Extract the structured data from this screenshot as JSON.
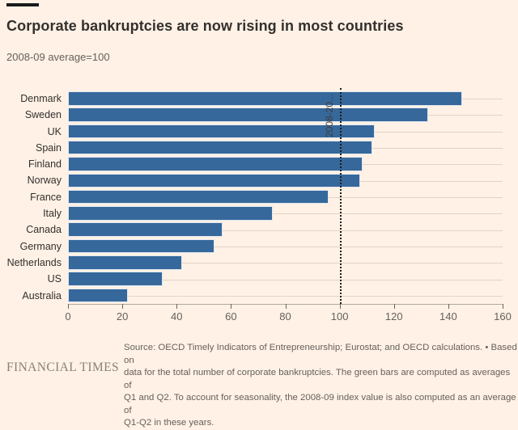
{
  "header": {
    "title": "Corporate bankruptcies are now rising in most countries",
    "subtitle": "2008-09 average=100"
  },
  "chart_data": {
    "type": "bar",
    "orientation": "horizontal",
    "categories": [
      "Denmark",
      "Sweden",
      "UK",
      "Spain",
      "Finland",
      "Norway",
      "France",
      "Italy",
      "Canada",
      "Germany",
      "Netherlands",
      "US",
      "Australia"
    ],
    "values": [
      145,
      132.5,
      113,
      112,
      108.5,
      107.5,
      96,
      75.5,
      57,
      54,
      42,
      35,
      22
    ],
    "xlim": [
      0,
      160
    ],
    "xticks": [
      0,
      20,
      40,
      60,
      80,
      100,
      120,
      140,
      160
    ],
    "grid": "horizontal-per-category",
    "reference_line": {
      "value": 100,
      "label": "2008-20...",
      "style": "dotted"
    },
    "title": "Corporate bankruptcies are now rising in most countries",
    "xlabel": "",
    "ylabel": ""
  },
  "footer": {
    "logo": "FINANCIAL TIMES",
    "source_text": "Source: OECD Timely Indicators of Entrepreneurship; Eurostat; and OECD calculations. • Based on\ndata for the total number of corporate bankruptcies. The green bars are computed as averages of\nQ1 and Q2. To account for seasonality, the 2008-09 index value is also computed as an average of\nQ1-Q2 in these years."
  },
  "colors": {
    "background": "#FFF1E5",
    "bar": "#36689B",
    "gridline": "#e1d4c6",
    "text_dark": "#33302e",
    "text_muted": "#66605c",
    "reference_line": "#1a1a1a"
  }
}
